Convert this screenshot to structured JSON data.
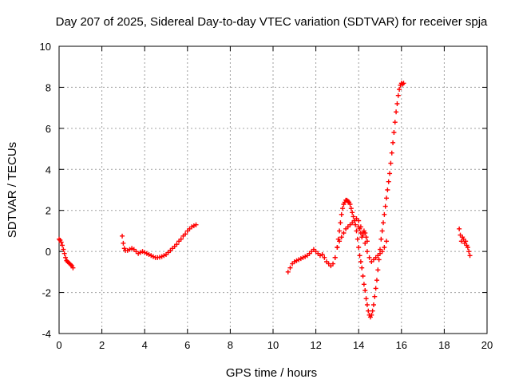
{
  "chart_data": {
    "type": "scatter",
    "title": "Day 207 of 2025, Sidereal Day-to-day VTEC variation (SDTVAR) for receiver spja",
    "xlabel": "GPS time / hours",
    "ylabel": "SDTVAR / TECUs",
    "xlim": [
      0,
      20
    ],
    "ylim": [
      -4,
      10
    ],
    "xticks": [
      0,
      2,
      4,
      6,
      8,
      10,
      12,
      14,
      16,
      18,
      20
    ],
    "yticks": [
      -4,
      -2,
      0,
      2,
      4,
      6,
      8,
      10
    ],
    "grid": true,
    "legend": "none",
    "marker": "plus",
    "color": "#ff0000",
    "segments": [
      {
        "x": [
          0.0,
          0.05,
          0.1,
          0.15,
          0.2,
          0.25,
          0.3,
          0.35,
          0.4,
          0.45,
          0.5,
          0.55,
          0.6,
          0.65
        ],
        "y": [
          0.6,
          0.55,
          0.45,
          0.3,
          0.1,
          -0.1,
          -0.3,
          -0.45,
          -0.5,
          -0.55,
          -0.6,
          -0.65,
          -0.7,
          -0.8
        ]
      },
      {
        "x": [
          2.95,
          3.0,
          3.05,
          3.1,
          3.2,
          3.3,
          3.4,
          3.5,
          3.6,
          3.7,
          3.8,
          3.9,
          4.0,
          4.1,
          4.2,
          4.3,
          4.4,
          4.5,
          4.6,
          4.7,
          4.8,
          4.9,
          5.0,
          5.1,
          5.2,
          5.3,
          5.4,
          5.5,
          5.6,
          5.7,
          5.8,
          5.9,
          6.0,
          6.1,
          6.2,
          6.3,
          6.4
        ],
        "y": [
          0.75,
          0.4,
          0.15,
          0.05,
          0.05,
          0.1,
          0.15,
          0.1,
          0.0,
          -0.1,
          -0.05,
          0.0,
          -0.05,
          -0.1,
          -0.15,
          -0.2,
          -0.25,
          -0.3,
          -0.3,
          -0.28,
          -0.25,
          -0.2,
          -0.15,
          -0.05,
          0.05,
          0.15,
          0.25,
          0.35,
          0.5,
          0.6,
          0.75,
          0.85,
          1.0,
          1.1,
          1.2,
          1.25,
          1.3
        ]
      },
      {
        "x": [
          10.7,
          10.8,
          10.9,
          11.0,
          11.1,
          11.2,
          11.3,
          11.4,
          11.5,
          11.6,
          11.7,
          11.8,
          11.9,
          12.0,
          12.1,
          12.2,
          12.3,
          12.4,
          12.5,
          12.6,
          12.7,
          12.8,
          12.9,
          13.0,
          13.05,
          13.1,
          13.15,
          13.2,
          13.25,
          13.3,
          13.35,
          13.4,
          13.45,
          13.5,
          13.55,
          13.6,
          13.65,
          13.7,
          13.75,
          13.8,
          13.85,
          13.9,
          13.95,
          14.0,
          14.05,
          14.1,
          14.15,
          14.2,
          14.25,
          14.3,
          14.35,
          14.4,
          14.45,
          14.5,
          14.55,
          14.6,
          14.65,
          14.7,
          14.75,
          14.8,
          14.85,
          14.9,
          14.95,
          15.0,
          15.05,
          15.1,
          15.15,
          15.2,
          15.25,
          15.3,
          15.35,
          15.4,
          15.45,
          15.5,
          15.55,
          15.6,
          15.65,
          15.7,
          15.75,
          15.8,
          15.85,
          15.9,
          15.95,
          16.0,
          16.05,
          16.1
        ],
        "y": [
          -1.0,
          -0.8,
          -0.6,
          -0.5,
          -0.45,
          -0.4,
          -0.35,
          -0.3,
          -0.25,
          -0.2,
          -0.1,
          0.0,
          0.1,
          0.0,
          -0.1,
          -0.2,
          -0.15,
          -0.3,
          -0.5,
          -0.6,
          -0.7,
          -0.6,
          -0.3,
          0.2,
          0.6,
          1.0,
          1.4,
          1.8,
          2.1,
          2.3,
          2.4,
          2.5,
          2.5,
          2.45,
          2.4,
          2.3,
          2.1,
          1.9,
          1.7,
          1.5,
          1.3,
          1.0,
          0.6,
          0.2,
          -0.2,
          -0.5,
          -0.8,
          -1.2,
          -1.6,
          -1.9,
          -2.3,
          -2.6,
          -2.9,
          -3.1,
          -3.2,
          -3.1,
          -2.9,
          -2.6,
          -2.2,
          -1.8,
          -1.4,
          -0.9,
          -0.4,
          0.1,
          0.6,
          1.0,
          1.4,
          1.8,
          2.2,
          2.6,
          3.0,
          3.4,
          3.8,
          4.3,
          4.8,
          5.3,
          5.8,
          6.3,
          6.8,
          7.2,
          7.6,
          7.9,
          8.1,
          8.2,
          8.15,
          8.2
        ]
      },
      {
        "x": [
          12.9,
          13.0,
          13.1,
          13.2,
          13.3,
          13.4,
          13.5,
          13.6,
          13.7,
          13.8,
          13.9,
          14.0,
          14.1,
          14.2,
          14.3,
          14.4,
          14.5,
          14.6,
          14.7,
          14.8,
          14.9,
          15.0,
          15.1,
          15.2,
          15.3
        ],
        "y": [
          -0.3,
          0.2,
          0.5,
          0.7,
          0.9,
          1.1,
          1.2,
          1.3,
          1.4,
          1.5,
          1.6,
          1.5,
          1.2,
          0.9,
          0.4,
          0.0,
          -0.3,
          -0.5,
          -0.4,
          -0.3,
          -0.2,
          -0.1,
          0.0,
          0.2,
          0.5
        ]
      },
      {
        "x": [
          14.0,
          14.05,
          14.1,
          14.15,
          14.2,
          14.25,
          14.3,
          14.35,
          14.4
        ],
        "y": [
          1.2,
          1.1,
          0.9,
          0.7,
          0.8,
          1.0,
          0.9,
          0.7,
          0.5
        ]
      },
      {
        "x": [
          18.7,
          18.75,
          18.8,
          18.85,
          18.9,
          18.95,
          19.0,
          19.05,
          19.1,
          19.15,
          19.2
        ],
        "y": [
          1.1,
          0.8,
          0.5,
          0.7,
          0.6,
          0.4,
          0.5,
          0.3,
          0.2,
          0.0,
          -0.2
        ]
      }
    ]
  }
}
